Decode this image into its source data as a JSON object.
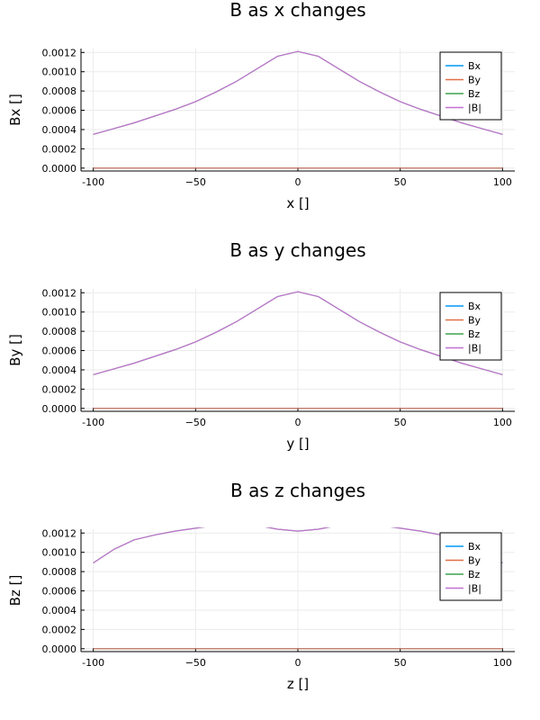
{
  "chart_data": [
    {
      "type": "line",
      "title": "B as x changes",
      "xlabel": "x []",
      "ylabel": "Bx []",
      "xlim": [
        -100,
        100
      ],
      "ylim": [
        0,
        0.0012
      ],
      "xticks": [
        "-100",
        "−50",
        "0",
        "50",
        "100"
      ],
      "yticks": [
        "0.0000",
        "0.0002",
        "0.0004",
        "0.0006",
        "0.0008",
        "0.0010",
        "0.0012"
      ],
      "legend_position": "top-right",
      "grid": true,
      "x": [
        -100,
        -90,
        -80,
        -70,
        -60,
        -50,
        -40,
        -30,
        -20,
        -10,
        0,
        10,
        20,
        30,
        40,
        50,
        60,
        70,
        80,
        90,
        100
      ],
      "series": [
        {
          "name": "Bx",
          "color": "#009af9",
          "values": [
            0,
            0,
            0,
            0,
            0,
            0,
            0,
            0,
            0,
            0,
            0,
            0,
            0,
            0,
            0,
            0,
            0,
            0,
            0,
            0,
            0
          ]
        },
        {
          "name": "By",
          "color": "#e26f46",
          "values": [
            0,
            0,
            0,
            0,
            0,
            0,
            0,
            0,
            0,
            0,
            0,
            0,
            0,
            0,
            0,
            0,
            0,
            0,
            0,
            0,
            0
          ]
        },
        {
          "name": "Bz",
          "color": "#3da44d",
          "values": [
            0.00035,
            0.00041,
            0.00047,
            0.00054,
            0.00061,
            0.00069,
            0.00079,
            0.0009,
            0.00103,
            0.00116,
            0.00121,
            0.00116,
            0.00103,
            0.0009,
            0.00079,
            0.00069,
            0.00061,
            0.00054,
            0.00047,
            0.00041,
            0.00035
          ]
        },
        {
          "name": "|B|",
          "color": "#c271d2",
          "values": [
            0.00035,
            0.00041,
            0.00047,
            0.00054,
            0.00061,
            0.00069,
            0.00079,
            0.0009,
            0.00103,
            0.00116,
            0.00121,
            0.00116,
            0.00103,
            0.0009,
            0.00079,
            0.00069,
            0.00061,
            0.00054,
            0.00047,
            0.00041,
            0.00035
          ]
        }
      ]
    },
    {
      "type": "line",
      "title": "B as y changes",
      "xlabel": "y []",
      "ylabel": "By []",
      "xlim": [
        -100,
        100
      ],
      "ylim": [
        0,
        0.0012
      ],
      "xticks": [
        "-100",
        "−50",
        "0",
        "50",
        "100"
      ],
      "yticks": [
        "0.0000",
        "0.0002",
        "0.0004",
        "0.0006",
        "0.0008",
        "0.0010",
        "0.0012"
      ],
      "legend_position": "top-right",
      "grid": true,
      "x": [
        -100,
        -90,
        -80,
        -70,
        -60,
        -50,
        -40,
        -30,
        -20,
        -10,
        0,
        10,
        20,
        30,
        40,
        50,
        60,
        70,
        80,
        90,
        100
      ],
      "series": [
        {
          "name": "Bx",
          "color": "#009af9",
          "values": [
            0,
            0,
            0,
            0,
            0,
            0,
            0,
            0,
            0,
            0,
            0,
            0,
            0,
            0,
            0,
            0,
            0,
            0,
            0,
            0,
            0
          ]
        },
        {
          "name": "By",
          "color": "#e26f46",
          "values": [
            0,
            0,
            0,
            0,
            0,
            0,
            0,
            0,
            0,
            0,
            0,
            0,
            0,
            0,
            0,
            0,
            0,
            0,
            0,
            0,
            0
          ]
        },
        {
          "name": "Bz",
          "color": "#3da44d",
          "values": [
            0.00035,
            0.00041,
            0.00047,
            0.00054,
            0.00061,
            0.00069,
            0.00079,
            0.0009,
            0.00103,
            0.00116,
            0.00121,
            0.00116,
            0.00103,
            0.0009,
            0.00079,
            0.00069,
            0.00061,
            0.00054,
            0.00047,
            0.00041,
            0.00035
          ]
        },
        {
          "name": "|B|",
          "color": "#c271d2",
          "values": [
            0.00035,
            0.00041,
            0.00047,
            0.00054,
            0.00061,
            0.00069,
            0.00079,
            0.0009,
            0.00103,
            0.00116,
            0.00121,
            0.00116,
            0.00103,
            0.0009,
            0.00079,
            0.00069,
            0.00061,
            0.00054,
            0.00047,
            0.00041,
            0.00035
          ]
        }
      ]
    },
    {
      "type": "line",
      "title": "B as z changes",
      "xlabel": "z []",
      "ylabel": "Bz []",
      "xlim": [
        -100,
        100
      ],
      "ylim": [
        0,
        0.0012
      ],
      "xticks": [
        "-100",
        "−50",
        "0",
        "50",
        "100"
      ],
      "yticks": [
        "0.0000",
        "0.0002",
        "0.0004",
        "0.0006",
        "0.0008",
        "0.0010",
        "0.0012"
      ],
      "legend_position": "top-right",
      "grid": true,
      "x": [
        -100,
        -90,
        -80,
        -70,
        -60,
        -50,
        -40,
        -30,
        -20,
        -10,
        0,
        10,
        20,
        30,
        40,
        50,
        60,
        70,
        80,
        90,
        100
      ],
      "series": [
        {
          "name": "Bx",
          "color": "#009af9",
          "values": [
            0,
            0,
            0,
            0,
            0,
            0,
            0,
            0,
            0,
            0,
            0,
            0,
            0,
            0,
            0,
            0,
            0,
            0,
            0,
            0,
            0
          ]
        },
        {
          "name": "By",
          "color": "#e26f46",
          "values": [
            0,
            0,
            0,
            0,
            0,
            0,
            0,
            0,
            0,
            0,
            0,
            0,
            0,
            0,
            0,
            0,
            0,
            0,
            0,
            0,
            0
          ]
        },
        {
          "name": "Bz",
          "color": "#3da44d",
          "values": [
            0.00089,
            0.00103,
            0.00113,
            0.00118,
            0.00122,
            0.00125,
            0.00128,
            0.00129,
            0.00128,
            0.00124,
            0.00122,
            0.00124,
            0.00128,
            0.00129,
            0.00128,
            0.00125,
            0.00122,
            0.00118,
            0.00113,
            0.00103,
            0.00089
          ]
        },
        {
          "name": "|B|",
          "color": "#c271d2",
          "values": [
            0.00089,
            0.00103,
            0.00113,
            0.00118,
            0.00122,
            0.00125,
            0.00128,
            0.00129,
            0.00128,
            0.00124,
            0.00122,
            0.00124,
            0.00128,
            0.00129,
            0.00128,
            0.00125,
            0.00122,
            0.00118,
            0.00113,
            0.00103,
            0.00089
          ]
        }
      ]
    }
  ]
}
